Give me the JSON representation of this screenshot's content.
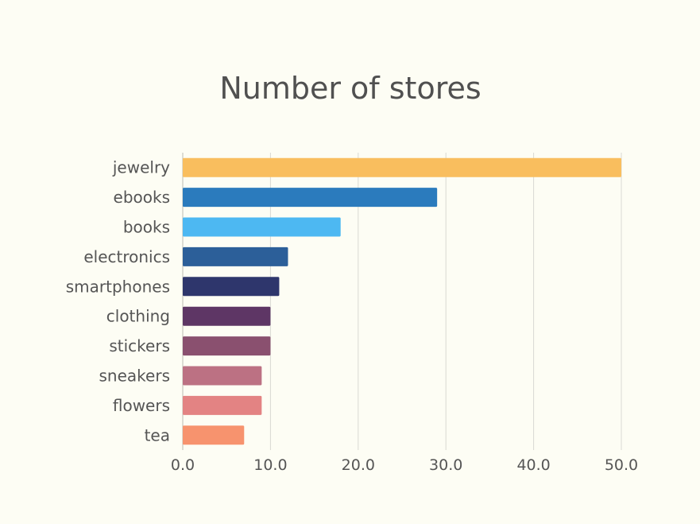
{
  "chart_data": {
    "type": "bar",
    "orientation": "horizontal",
    "title": "Number of stores",
    "xlabel": "",
    "ylabel": "",
    "categories": [
      "jewelry",
      "ebooks",
      "books",
      "electronics",
      "smartphones",
      "clothing",
      "stickers",
      "sneakers",
      "flowers",
      "tea"
    ],
    "values": [
      50,
      29,
      18,
      12,
      11,
      10,
      10,
      9,
      9,
      7
    ],
    "colors": [
      "#f9be5e",
      "#2b7bbd",
      "#4db8f2",
      "#2c5f99",
      "#2e366c",
      "#5e3665",
      "#8a506f",
      "#bc7183",
      "#e38383",
      "#f7936e"
    ],
    "xlim": [
      0,
      50
    ],
    "xticks": [
      "0.0",
      "10.0",
      "20.0",
      "30.0",
      "40.0",
      "50.0"
    ],
    "grid": true,
    "legend": false
  }
}
